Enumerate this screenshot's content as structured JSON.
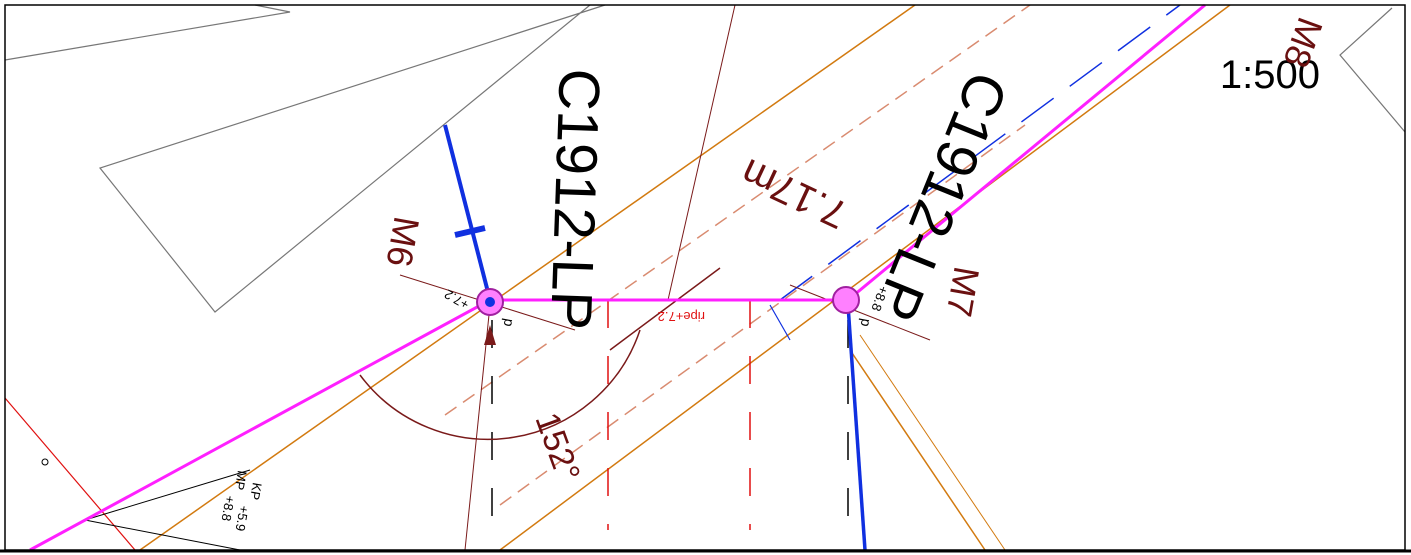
{
  "scale": "1:500",
  "poles": [
    {
      "id": "C1912-LP",
      "mark": "M6"
    },
    {
      "id": "C1912-LP",
      "mark": "M7"
    }
  ],
  "other_mark": "M8",
  "span": "7.17m",
  "angle": "152°",
  "annotations": {
    "ripe": "ripe+7.2",
    "p1": "p",
    "p2": "p",
    "h1": "+7.2",
    "h2": "+8.8",
    "mp": "MP",
    "kp": "KP",
    "h3": "+8.8",
    "h4": "+5.9"
  }
}
